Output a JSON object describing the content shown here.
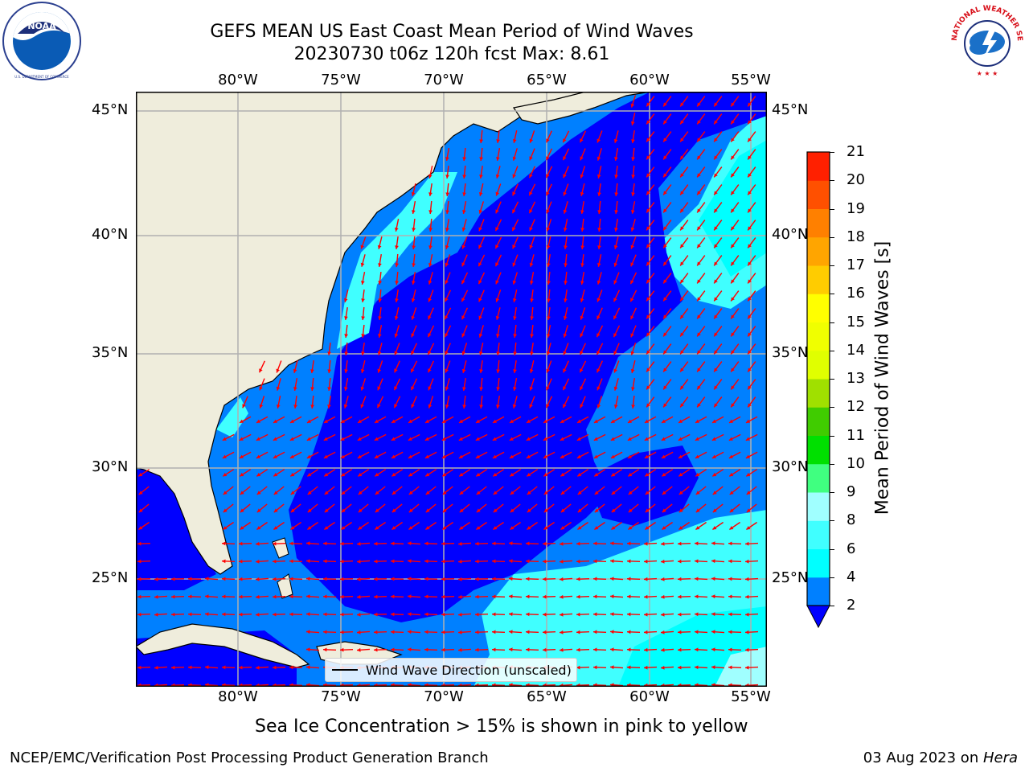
{
  "header": {
    "title_line1": "GEFS MEAN US East Coast Mean Period of Wind Waves",
    "title_line2": "20230730 t06z 120h fcst   Max: 8.61"
  },
  "logos": {
    "left_name": "NOAA",
    "left_ring_text": "NATIONAL OCEANIC AND ATMOSPHERIC ADMINISTRATION · U.S. DEPARTMENT OF COMMERCE",
    "right_ring_text": "NATIONAL WEATHER SERVICE"
  },
  "map": {
    "lon_ticks": [
      "80°W",
      "75°W",
      "70°W",
      "65°W",
      "60°W",
      "55°W"
    ],
    "lat_ticks": [
      "45°N",
      "40°N",
      "35°N",
      "30°N",
      "25°N"
    ],
    "lon_range": [
      -85,
      -54.5
    ],
    "lat_range": [
      20.5,
      46.5
    ],
    "field_colors": {
      "land": "#efeddc",
      "dark_blue": "#0000ff",
      "mid_blue": "#0080ff",
      "light_cyan": "#40ffff",
      "cyan": "#00ffff"
    },
    "arrow_color": "#ff0000",
    "grid_color": "#b0b0b0"
  },
  "legend": {
    "label": "Wind Wave Direction (unscaled)"
  },
  "colorbar": {
    "label": "Mean Period of Wind Waves [s]",
    "ticks": [
      "2",
      "4",
      "6",
      "8",
      "9",
      "10",
      "11",
      "12",
      "13",
      "14",
      "15",
      "16",
      "17",
      "18",
      "19",
      "20",
      "21"
    ],
    "colors": [
      "#0080ff",
      "#00ffff",
      "#40ffff",
      "#a0ffff",
      "#40ff80",
      "#00e000",
      "#40cc00",
      "#a0e000",
      "#e0ff00",
      "#f0ff00",
      "#ffff00",
      "#ffcc00",
      "#ffa500",
      "#ff8000",
      "#ff5000",
      "#ff2000"
    ],
    "under_color": "#0000ff"
  },
  "captions": {
    "sea_ice": "Sea Ice Concentration > 15% is shown in pink to yellow",
    "branch": "NCEP/EMC/Verification Post Processing Product Generation Branch",
    "date": "03 Aug 2023 on ",
    "machine": "Hera"
  }
}
